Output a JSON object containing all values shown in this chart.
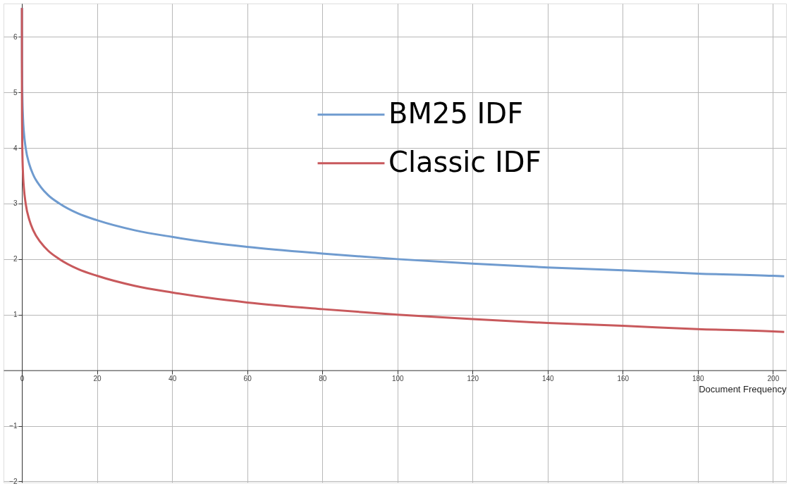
{
  "chart_data": {
    "type": "line",
    "xlabel": "Document Frequency",
    "series": [
      {
        "name": "BM25 IDF",
        "color": "#6f9bcf",
        "x": [
          0.003,
          0.01,
          0.03,
          0.1,
          0.3,
          0.5,
          1,
          2,
          3,
          5,
          7,
          10,
          15,
          20,
          30,
          40,
          50,
          60,
          80,
          100,
          120,
          140,
          160,
          180,
          200,
          203
        ],
        "values": [
          6.52,
          6,
          5.52,
          5,
          4.52,
          4.3,
          4,
          3.7,
          3.52,
          3.3,
          3.15,
          3,
          2.82,
          2.7,
          2.52,
          2.4,
          2.3,
          2.22,
          2.1,
          2,
          1.92,
          1.85,
          1.8,
          1.74,
          1.7,
          1.69
        ]
      },
      {
        "name": "Classic IDF",
        "color": "#c8595c",
        "x": [
          0.0003,
          0.001,
          0.003,
          0.01,
          0.03,
          0.1,
          0.3,
          0.5,
          1,
          2,
          3,
          5,
          7,
          10,
          15,
          20,
          30,
          40,
          50,
          60,
          80,
          100,
          120,
          140,
          160,
          180,
          200,
          203
        ],
        "values": [
          6.52,
          6,
          5.52,
          5,
          4.52,
          4,
          3.52,
          3.3,
          3,
          2.7,
          2.52,
          2.3,
          2.15,
          2,
          1.82,
          1.7,
          1.52,
          1.4,
          1.3,
          1.22,
          1.1,
          1,
          0.92,
          0.85,
          0.8,
          0.74,
          0.7,
          0.69
        ]
      }
    ],
    "xlim": [
      -4.9,
      203.5
    ],
    "ylim": [
      -2.02,
      6.6
    ],
    "xticks": [
      0,
      20,
      40,
      60,
      80,
      100,
      120,
      140,
      160,
      180,
      200
    ],
    "yticks": [
      -2,
      -1,
      1,
      2,
      3,
      4,
      5,
      6
    ],
    "grid": true,
    "legend": "top",
    "marker": "none",
    "line_style": "solid"
  }
}
